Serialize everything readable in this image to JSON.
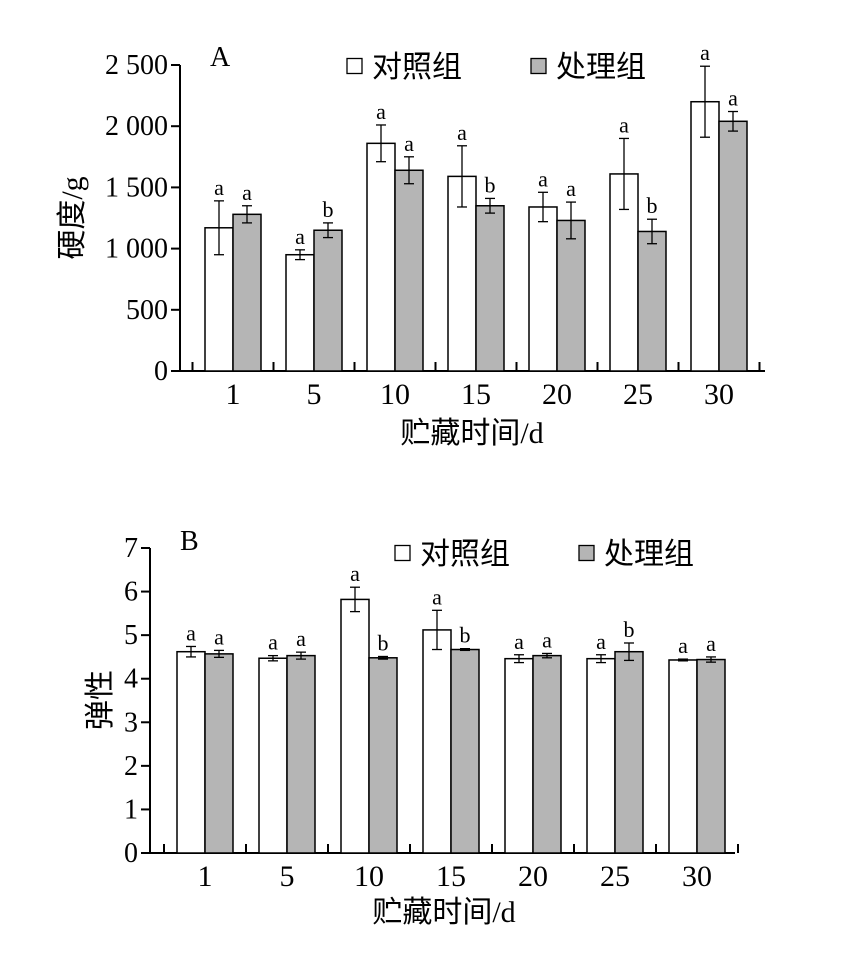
{
  "chart_data": [
    {
      "panel": "A",
      "type": "bar",
      "ylabel": "硬度/g",
      "xlabel": "贮藏时间/d",
      "categories": [
        "1",
        "5",
        "10",
        "15",
        "20",
        "25",
        "30"
      ],
      "ylim": [
        0,
        2500
      ],
      "yticks": [
        0,
        500,
        1000,
        1500,
        2000,
        2500
      ],
      "ytick_labels": [
        "0",
        "500",
        "1 000",
        "1 500",
        "2 000",
        "2 500"
      ],
      "legend_position": "top-right",
      "series": [
        {
          "name": "对照组",
          "color": "#ffffff",
          "values": [
            1170,
            950,
            1860,
            1590,
            1340,
            1610,
            2200
          ],
          "errors": [
            220,
            40,
            150,
            250,
            120,
            290,
            290
          ],
          "letters": [
            "a",
            "a",
            "a",
            "a",
            "a",
            "a",
            "a"
          ]
        },
        {
          "name": "处理组",
          "color": "#b5b5b5",
          "values": [
            1280,
            1150,
            1640,
            1350,
            1230,
            1140,
            2040
          ],
          "errors": [
            70,
            60,
            110,
            60,
            150,
            100,
            80
          ],
          "letters": [
            "a",
            "b",
            "a",
            "b",
            "a",
            "b",
            "a"
          ]
        }
      ]
    },
    {
      "panel": "B",
      "type": "bar",
      "ylabel": "弹性",
      "xlabel": "贮藏时间/d",
      "categories": [
        "1",
        "5",
        "10",
        "15",
        "20",
        "25",
        "30"
      ],
      "ylim": [
        0,
        7
      ],
      "yticks": [
        0,
        1,
        2,
        3,
        4,
        5,
        6,
        7
      ],
      "ytick_labels": [
        "0",
        "1",
        "2",
        "3",
        "4",
        "5",
        "6",
        "7"
      ],
      "legend_position": "top-right",
      "series": [
        {
          "name": "对照组",
          "color": "#ffffff",
          "values": [
            4.62,
            4.47,
            5.82,
            5.12,
            4.46,
            4.46,
            4.43
          ],
          "errors": [
            0.12,
            0.06,
            0.28,
            0.45,
            0.09,
            0.09,
            0.02
          ],
          "letters": [
            "a",
            "a",
            "a",
            "a",
            "a",
            "a",
            "a"
          ]
        },
        {
          "name": "处理组",
          "color": "#b5b5b5",
          "values": [
            4.57,
            4.53,
            4.48,
            4.67,
            4.53,
            4.62,
            4.44
          ],
          "errors": [
            0.08,
            0.08,
            0.03,
            0.02,
            0.05,
            0.2,
            0.06
          ],
          "letters": [
            "a",
            "a",
            "b",
            "b",
            "a",
            "b",
            "a"
          ]
        }
      ]
    }
  ]
}
